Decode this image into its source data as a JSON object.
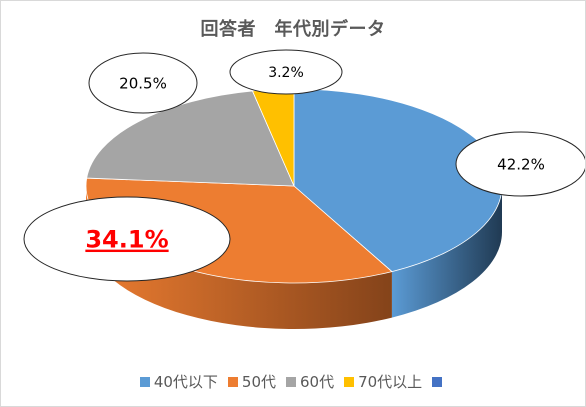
{
  "chart_data": {
    "type": "pie",
    "title": "回答者　年代別データ",
    "categories": [
      "40代以下",
      "50代",
      "60代",
      "70代以上"
    ],
    "values": [
      42.2,
      34.1,
      20.5,
      3.2
    ],
    "data_labels": [
      "42.2%",
      "34.1%",
      "20.5%",
      "3.2%"
    ],
    "colors": [
      "#5b9bd5",
      "#ed7d31",
      "#a5a5a5",
      "#ffc000"
    ],
    "side_colors": [
      "#203a53",
      "#84431a",
      "#5c5c5c",
      "#8c6a00"
    ],
    "highlight_label_color": "#ff0000",
    "legend_position": "bottom",
    "legend": [
      {
        "label": "40代以下",
        "color": "#5b9bd5"
      },
      {
        "label": "50代",
        "color": "#ed7d31"
      },
      {
        "label": "60代",
        "color": "#a5a5a5"
      },
      {
        "label": "70代以上",
        "color": "#ffc000"
      },
      {
        "label": "",
        "color": "#4472c4"
      }
    ]
  }
}
